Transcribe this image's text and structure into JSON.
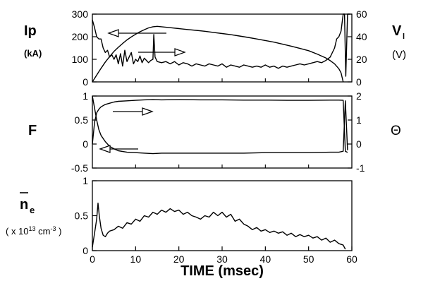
{
  "chart_data": [
    {
      "type": "line",
      "panel": "top",
      "left_label": "Ip",
      "left_unit": "(kA)",
      "right_label_main": "V",
      "right_label_sub": "l",
      "right_unit": "(V)",
      "ylim_left": [
        0,
        300
      ],
      "yticks_left": [
        "0",
        "100",
        "200",
        "300"
      ],
      "ylim_right": [
        0,
        60
      ],
      "yticks_right": [
        "0",
        "20",
        "40",
        "60"
      ],
      "xlim": [
        0,
        60
      ],
      "series": [
        {
          "axis": "left",
          "x": [
            0,
            1,
            2,
            3,
            4,
            5,
            6,
            7,
            8,
            9,
            10,
            11,
            12,
            13,
            14,
            15,
            16,
            18,
            20,
            22,
            24,
            26,
            28,
            30,
            32,
            34,
            36,
            38,
            40,
            42,
            44,
            46,
            48,
            50,
            52,
            54,
            55,
            56,
            57,
            57.5,
            58
          ],
          "y": [
            0,
            30,
            60,
            88,
            112,
            135,
            153,
            170,
            186,
            199,
            211,
            222,
            231,
            239,
            244,
            246,
            244,
            240,
            236,
            232,
            228,
            224,
            219,
            214,
            209,
            203,
            197,
            190,
            183,
            176,
            167,
            158,
            148,
            138,
            123,
            106,
            94,
            80,
            58,
            40,
            0
          ]
        },
        {
          "axis": "right",
          "x": [
            0,
            0.5,
            1,
            1.5,
            2,
            2.5,
            3,
            3.5,
            4,
            4.5,
            5,
            5.5,
            6,
            6.5,
            7,
            7.5,
            8,
            8.5,
            9,
            9.5,
            10,
            10.5,
            11,
            11.5,
            12,
            12.5,
            13,
            13.5,
            14,
            14.2,
            14.5,
            15,
            16,
            17,
            18,
            19,
            20,
            21,
            22,
            23,
            24,
            25,
            26,
            27,
            28,
            29,
            30,
            31,
            32,
            33,
            34,
            35,
            36,
            37,
            38,
            39,
            40,
            41,
            42,
            43,
            44,
            45,
            46,
            47,
            48,
            49,
            50,
            51,
            52,
            53,
            54,
            55,
            56,
            56.5,
            57,
            57.5,
            58,
            58.3,
            58.6,
            59,
            59.5
          ],
          "y": [
            55,
            48,
            40,
            38,
            38,
            30,
            26,
            28,
            22,
            24,
            20,
            24,
            16,
            25,
            14,
            28,
            18,
            22,
            26,
            16,
            20,
            18,
            23,
            17,
            21,
            19,
            17,
            19,
            20,
            42,
            22,
            18,
            17,
            18,
            16,
            18,
            15,
            17,
            16,
            14,
            16,
            15,
            14,
            16,
            15,
            14,
            16,
            13,
            15,
            14,
            13,
            15,
            14,
            13,
            14,
            13,
            15,
            13,
            14,
            12,
            14,
            13,
            14,
            15,
            16,
            15,
            16,
            17,
            18,
            17,
            19,
            22,
            30,
            38,
            40,
            45,
            60,
            60,
            5,
            60,
            60
          ]
        }
      ]
    },
    {
      "type": "line",
      "panel": "middle",
      "left_label": "F",
      "right_label": "Θ",
      "ylim_left": [
        -0.5,
        1
      ],
      "yticks_left": [
        "-0.5",
        "0",
        "0.5",
        "1"
      ],
      "ylim_right": [
        -1,
        2
      ],
      "yticks_right": [
        "-1",
        "0",
        "1",
        "2"
      ],
      "xlim": [
        0,
        60
      ],
      "series": [
        {
          "axis": "left",
          "x": [
            0,
            0.5,
            1,
            1.5,
            2,
            3,
            4,
            5,
            6,
            8,
            10,
            12,
            14,
            16,
            20,
            25,
            30,
            35,
            40,
            45,
            50,
            55,
            57,
            58,
            58.5,
            59
          ],
          "y": [
            1.0,
            0.75,
            0.5,
            0.3,
            0.18,
            0.05,
            -0.05,
            -0.1,
            -0.14,
            -0.17,
            -0.18,
            -0.19,
            -0.2,
            -0.19,
            -0.19,
            -0.19,
            -0.19,
            -0.19,
            -0.18,
            -0.18,
            -0.18,
            -0.17,
            -0.17,
            -0.15,
            0.9,
            -0.13
          ]
        },
        {
          "axis": "right",
          "x": [
            0,
            0.5,
            1,
            1.5,
            2,
            3,
            4,
            5,
            6,
            8,
            10,
            12,
            14,
            16,
            20,
            25,
            30,
            35,
            40,
            45,
            50,
            55,
            57,
            58,
            58.5,
            59
          ],
          "y": [
            0,
            0.9,
            1.3,
            1.45,
            1.55,
            1.65,
            1.7,
            1.75,
            1.78,
            1.8,
            1.82,
            1.84,
            1.85,
            1.84,
            1.85,
            1.84,
            1.84,
            1.83,
            1.83,
            1.82,
            1.82,
            1.83,
            1.83,
            1.82,
            -0.3,
            -0.35
          ]
        }
      ]
    },
    {
      "type": "line",
      "panel": "bottom",
      "left_label": "n",
      "left_label_sub": "e",
      "left_unit_prefix": "( x 10",
      "left_unit_exp": "13",
      "left_unit_mid": " cm",
      "left_unit_exp2": "-3",
      "left_unit_suffix": " )",
      "ylim_left": [
        0,
        1
      ],
      "yticks_left": [
        "0",
        "0.5",
        "1"
      ],
      "xlim": [
        0,
        60
      ],
      "xticks": [
        "0",
        "10",
        "20",
        "30",
        "40",
        "50",
        "60"
      ],
      "xlabel": "TIME  (msec)",
      "series": [
        {
          "axis": "left",
          "x": [
            0,
            0.5,
            1,
            1.3,
            1.6,
            2,
            2.5,
            3,
            3.5,
            4,
            5,
            6,
            7,
            8,
            9,
            10,
            11,
            12,
            13,
            14,
            15,
            16,
            17,
            18,
            19,
            20,
            21,
            22,
            23,
            24,
            25,
            26,
            27,
            28,
            29,
            30,
            31,
            32,
            33,
            34,
            35,
            36,
            37,
            38,
            39,
            40,
            41,
            42,
            43,
            44,
            45,
            46,
            47,
            48,
            49,
            50,
            51,
            52,
            53,
            54,
            55,
            56,
            57,
            58,
            58.5
          ],
          "y": [
            0.05,
            0.25,
            0.45,
            0.68,
            0.5,
            0.32,
            0.22,
            0.2,
            0.25,
            0.28,
            0.3,
            0.35,
            0.32,
            0.4,
            0.38,
            0.45,
            0.42,
            0.5,
            0.48,
            0.55,
            0.52,
            0.58,
            0.55,
            0.6,
            0.56,
            0.58,
            0.52,
            0.55,
            0.5,
            0.48,
            0.45,
            0.5,
            0.48,
            0.55,
            0.5,
            0.55,
            0.48,
            0.52,
            0.42,
            0.45,
            0.38,
            0.35,
            0.3,
            0.33,
            0.28,
            0.3,
            0.26,
            0.28,
            0.25,
            0.27,
            0.22,
            0.25,
            0.2,
            0.23,
            0.2,
            0.22,
            0.18,
            0.2,
            0.15,
            0.18,
            0.12,
            0.15,
            0.1,
            0.08,
            0.02
          ]
        }
      ]
    }
  ]
}
